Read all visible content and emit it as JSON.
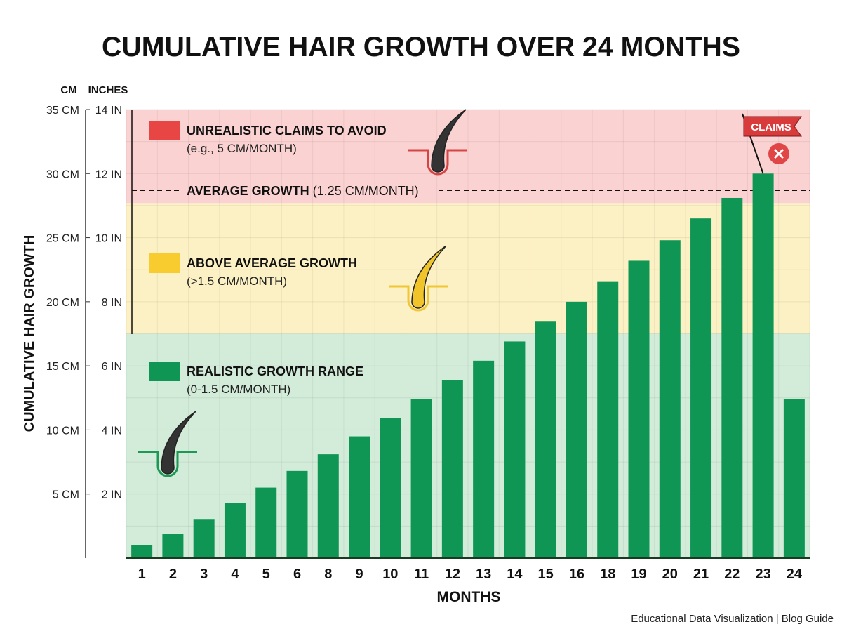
{
  "chart_data": {
    "type": "bar",
    "title": "CUMULATIVE HAIR GROWTH OVER 24 MONTHS",
    "xlabel": "MONTHS",
    "ylabel": "CUMULATIVE HAIR GROWTH",
    "unit_headers": {
      "cm": "CM",
      "inches": "INCHES"
    },
    "ylim": [
      0,
      35
    ],
    "yticks_cm": [
      "5 CM",
      "10 CM",
      "15 CM",
      "20 CM",
      "25 CM",
      "30 CM",
      "35 CM"
    ],
    "yticks_in": [
      "2 IN",
      "4 IN",
      "6 IN",
      "8 IN",
      "10 IN",
      "12 IN",
      "14 IN"
    ],
    "categories": [
      "1",
      "2",
      "3",
      "4",
      "5",
      "6",
      "8",
      "9",
      "10",
      "11",
      "12",
      "13",
      "14",
      "15",
      "16",
      "18",
      "19",
      "20",
      "21",
      "22",
      "23",
      "24"
    ],
    "values": [
      1.0,
      1.9,
      3.0,
      4.3,
      5.5,
      6.8,
      8.1,
      9.5,
      10.9,
      12.4,
      13.9,
      15.4,
      16.9,
      18.5,
      20.0,
      21.6,
      23.2,
      24.8,
      26.5,
      28.1,
      30.0,
      12.4
    ],
    "bar_color": "#0f9654",
    "grid": true,
    "zones": [
      {
        "label": "REALISTIC GROWTH RANGE",
        "sublabel": "(0-1.5 CM/MONTH)",
        "from": 0,
        "to": 17.5,
        "color": "#d3ecd9",
        "swatch": "#0f9654"
      },
      {
        "label": "ABOVE AVERAGE GROWTH",
        "sublabel": "(>1.5 CM/MONTH)",
        "from": 17.5,
        "to": 27.7,
        "color": "#fcf1c4",
        "swatch": "#f8cb2e"
      },
      {
        "label": "UNREALISTIC CLAIMS TO AVOID",
        "sublabel": "(e.g., 5 CM/MONTH)",
        "from": 27.7,
        "to": 35,
        "color": "#fbd2d2",
        "swatch": "#e84545"
      }
    ],
    "reference_line": {
      "label_bold": "AVERAGE GROWTH",
      "label_rest": "(1.25 CM/MONTH)",
      "value": 28.7
    },
    "flag": {
      "label": "CLAIMS",
      "category": "23",
      "color": "#d93a3a"
    },
    "footer": "Educational Data Visualization | Blog Guide"
  }
}
